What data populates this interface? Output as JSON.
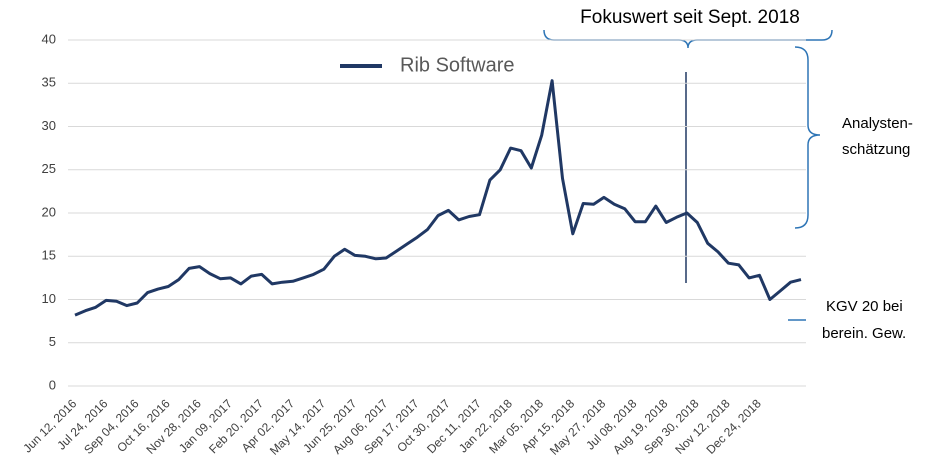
{
  "chart_data": {
    "type": "line",
    "categories": [
      "Jun 12, 2016",
      null,
      null,
      "Jul 24, 2016",
      null,
      null,
      "Sep 04, 2016",
      null,
      null,
      "Oct 16, 2016",
      null,
      null,
      "Nov 28, 2016",
      null,
      null,
      "Jan 09, 2017",
      null,
      null,
      "Feb 20, 2017",
      null,
      null,
      "Apr 02, 2017",
      null,
      null,
      "May 14, 2017",
      null,
      null,
      "Jun 25, 2017",
      null,
      null,
      "Aug 06, 2017",
      null,
      null,
      "Sep 17, 2017",
      null,
      null,
      "Oct 30, 2017",
      null,
      null,
      "Dec 11, 2017",
      null,
      null,
      "Jan 22, 2018",
      null,
      null,
      "Mar 05, 2018",
      null,
      null,
      "Apr 15, 2018",
      null,
      null,
      "May 27, 2018",
      null,
      null,
      "Jul 08, 2018",
      null,
      null,
      "Aug 19, 2018",
      null,
      null,
      "Sep 30, 2018",
      null,
      null,
      "Nov 12, 2018",
      null,
      null,
      "Dec 24, 2018",
      null,
      null,
      null,
      null
    ],
    "series": [
      {
        "name": "Rib Software",
        "color": "#203864",
        "values": [
          8.2,
          8.7,
          9.1,
          9.9,
          9.8,
          9.3,
          9.6,
          10.8,
          11.2,
          11.5,
          12.3,
          13.6,
          13.8,
          13.0,
          12.4,
          12.5,
          11.8,
          12.7,
          12.9,
          11.8,
          12.0,
          12.1,
          12.5,
          12.9,
          13.5,
          15.0,
          15.8,
          15.1,
          15.0,
          14.7,
          14.8,
          15.6,
          16.4,
          17.2,
          18.1,
          19.7,
          20.3,
          19.2,
          19.6,
          19.8,
          23.8,
          25.0,
          27.5,
          27.2,
          25.2,
          29.0,
          35.3,
          24.0,
          17.6,
          21.1,
          21.0,
          21.8,
          21.0,
          20.5,
          19.0,
          19.0,
          20.8,
          18.9,
          19.5,
          20.0,
          18.9,
          16.5,
          15.5,
          14.2,
          14.0,
          12.5,
          12.8,
          10.0,
          11.0,
          12.0,
          12.3
        ]
      }
    ],
    "ylim": [
      0,
      40
    ],
    "yticks": [
      0,
      5,
      10,
      15,
      20,
      25,
      30,
      35,
      40
    ],
    "grid": true,
    "annotations": [
      "Fokuswert seit Sept. 2018",
      "Analysten-",
      "schätzung",
      "KGV 20 bei",
      "berein. Gew."
    ]
  }
}
